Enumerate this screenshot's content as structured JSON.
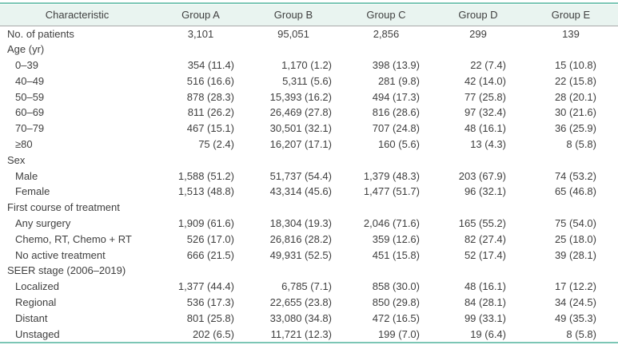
{
  "colors": {
    "accent_teal": "#7cc6b5",
    "header_bg": "#e9f4f0",
    "rule_gray": "#a9a9a9",
    "text": "#3f3f3f"
  },
  "table": {
    "columns": [
      "Characteristic",
      "Group A",
      "Group B",
      "Group C",
      "Group D",
      "Group E"
    ],
    "rows": [
      {
        "label": "No. of patients",
        "indent": false,
        "values": [
          "3,101",
          "95,051",
          "2,856",
          "299",
          "139"
        ]
      },
      {
        "label": "Age (yr)",
        "indent": false,
        "values": [
          "",
          "",
          "",
          "",
          ""
        ]
      },
      {
        "label": "0–39",
        "indent": true,
        "values": [
          "354 (11.4)",
          "1,170 (1.2)",
          "398 (13.9)",
          "22 (7.4)",
          "15 (10.8)"
        ]
      },
      {
        "label": "40–49",
        "indent": true,
        "values": [
          "516 (16.6)",
          "5,311 (5.6)",
          "281 (9.8)",
          "42 (14.0)",
          "22 (15.8)"
        ]
      },
      {
        "label": "50–59",
        "indent": true,
        "values": [
          "878 (28.3)",
          "15,393 (16.2)",
          "494 (17.3)",
          "77 (25.8)",
          "28 (20.1)"
        ]
      },
      {
        "label": "60–69",
        "indent": true,
        "values": [
          "811 (26.2)",
          "26,469 (27.8)",
          "816 (28.6)",
          "97 (32.4)",
          "30 (21.6)"
        ]
      },
      {
        "label": "70–79",
        "indent": true,
        "values": [
          "467 (15.1)",
          "30,501 (32.1)",
          "707 (24.8)",
          "48 (16.1)",
          "36 (25.9)"
        ]
      },
      {
        "label": "≥80",
        "indent": true,
        "values": [
          "75 (2.4)",
          "16,207 (17.1)",
          "160 (5.6)",
          "13 (4.3)",
          "8 (5.8)"
        ]
      },
      {
        "label": "Sex",
        "indent": false,
        "values": [
          "",
          "",
          "",
          "",
          ""
        ]
      },
      {
        "label": "Male",
        "indent": true,
        "values": [
          "1,588 (51.2)",
          "51,737 (54.4)",
          "1,379 (48.3)",
          "203 (67.9)",
          "74 (53.2)"
        ]
      },
      {
        "label": "Female",
        "indent": true,
        "values": [
          "1,513 (48.8)",
          "43,314 (45.6)",
          "1,477 (51.7)",
          "96 (32.1)",
          "65 (46.8)"
        ]
      },
      {
        "label": "First course of treatment",
        "indent": false,
        "values": [
          "",
          "",
          "",
          "",
          ""
        ]
      },
      {
        "label": "Any surgery",
        "indent": true,
        "values": [
          "1,909 (61.6)",
          "18,304 (19.3)",
          "2,046 (71.6)",
          "165 (55.2)",
          "75 (54.0)"
        ]
      },
      {
        "label": "Chemo, RT, Chemo + RT",
        "indent": true,
        "values": [
          "526 (17.0)",
          "26,816 (28.2)",
          "359 (12.6)",
          "82 (27.4)",
          "25 (18.0)"
        ]
      },
      {
        "label": "No active treatment",
        "indent": true,
        "values": [
          "666 (21.5)",
          "49,931 (52.5)",
          "451 (15.8)",
          "52 (17.4)",
          "39 (28.1)"
        ]
      },
      {
        "label": "SEER stage (2006–2019)",
        "indent": false,
        "values": [
          "",
          "",
          "",
          "",
          ""
        ]
      },
      {
        "label": "Localized",
        "indent": true,
        "values": [
          "1,377 (44.4)",
          "6,785 (7.1)",
          "858 (30.0)",
          "48 (16.1)",
          "17 (12.2)"
        ]
      },
      {
        "label": "Regional",
        "indent": true,
        "values": [
          "536 (17.3)",
          "22,655 (23.8)",
          "850 (29.8)",
          "84 (28.1)",
          "34 (24.5)"
        ]
      },
      {
        "label": "Distant",
        "indent": true,
        "values": [
          "801 (25.8)",
          "33,080 (34.8)",
          "472 (16.5)",
          "99 (33.1)",
          "49 (35.3)"
        ]
      },
      {
        "label": "Unstaged",
        "indent": true,
        "values": [
          "202 (6.5)",
          "11,721 (12.3)",
          "199 (7.0)",
          "19 (6.4)",
          "8 (5.8)"
        ]
      }
    ]
  }
}
